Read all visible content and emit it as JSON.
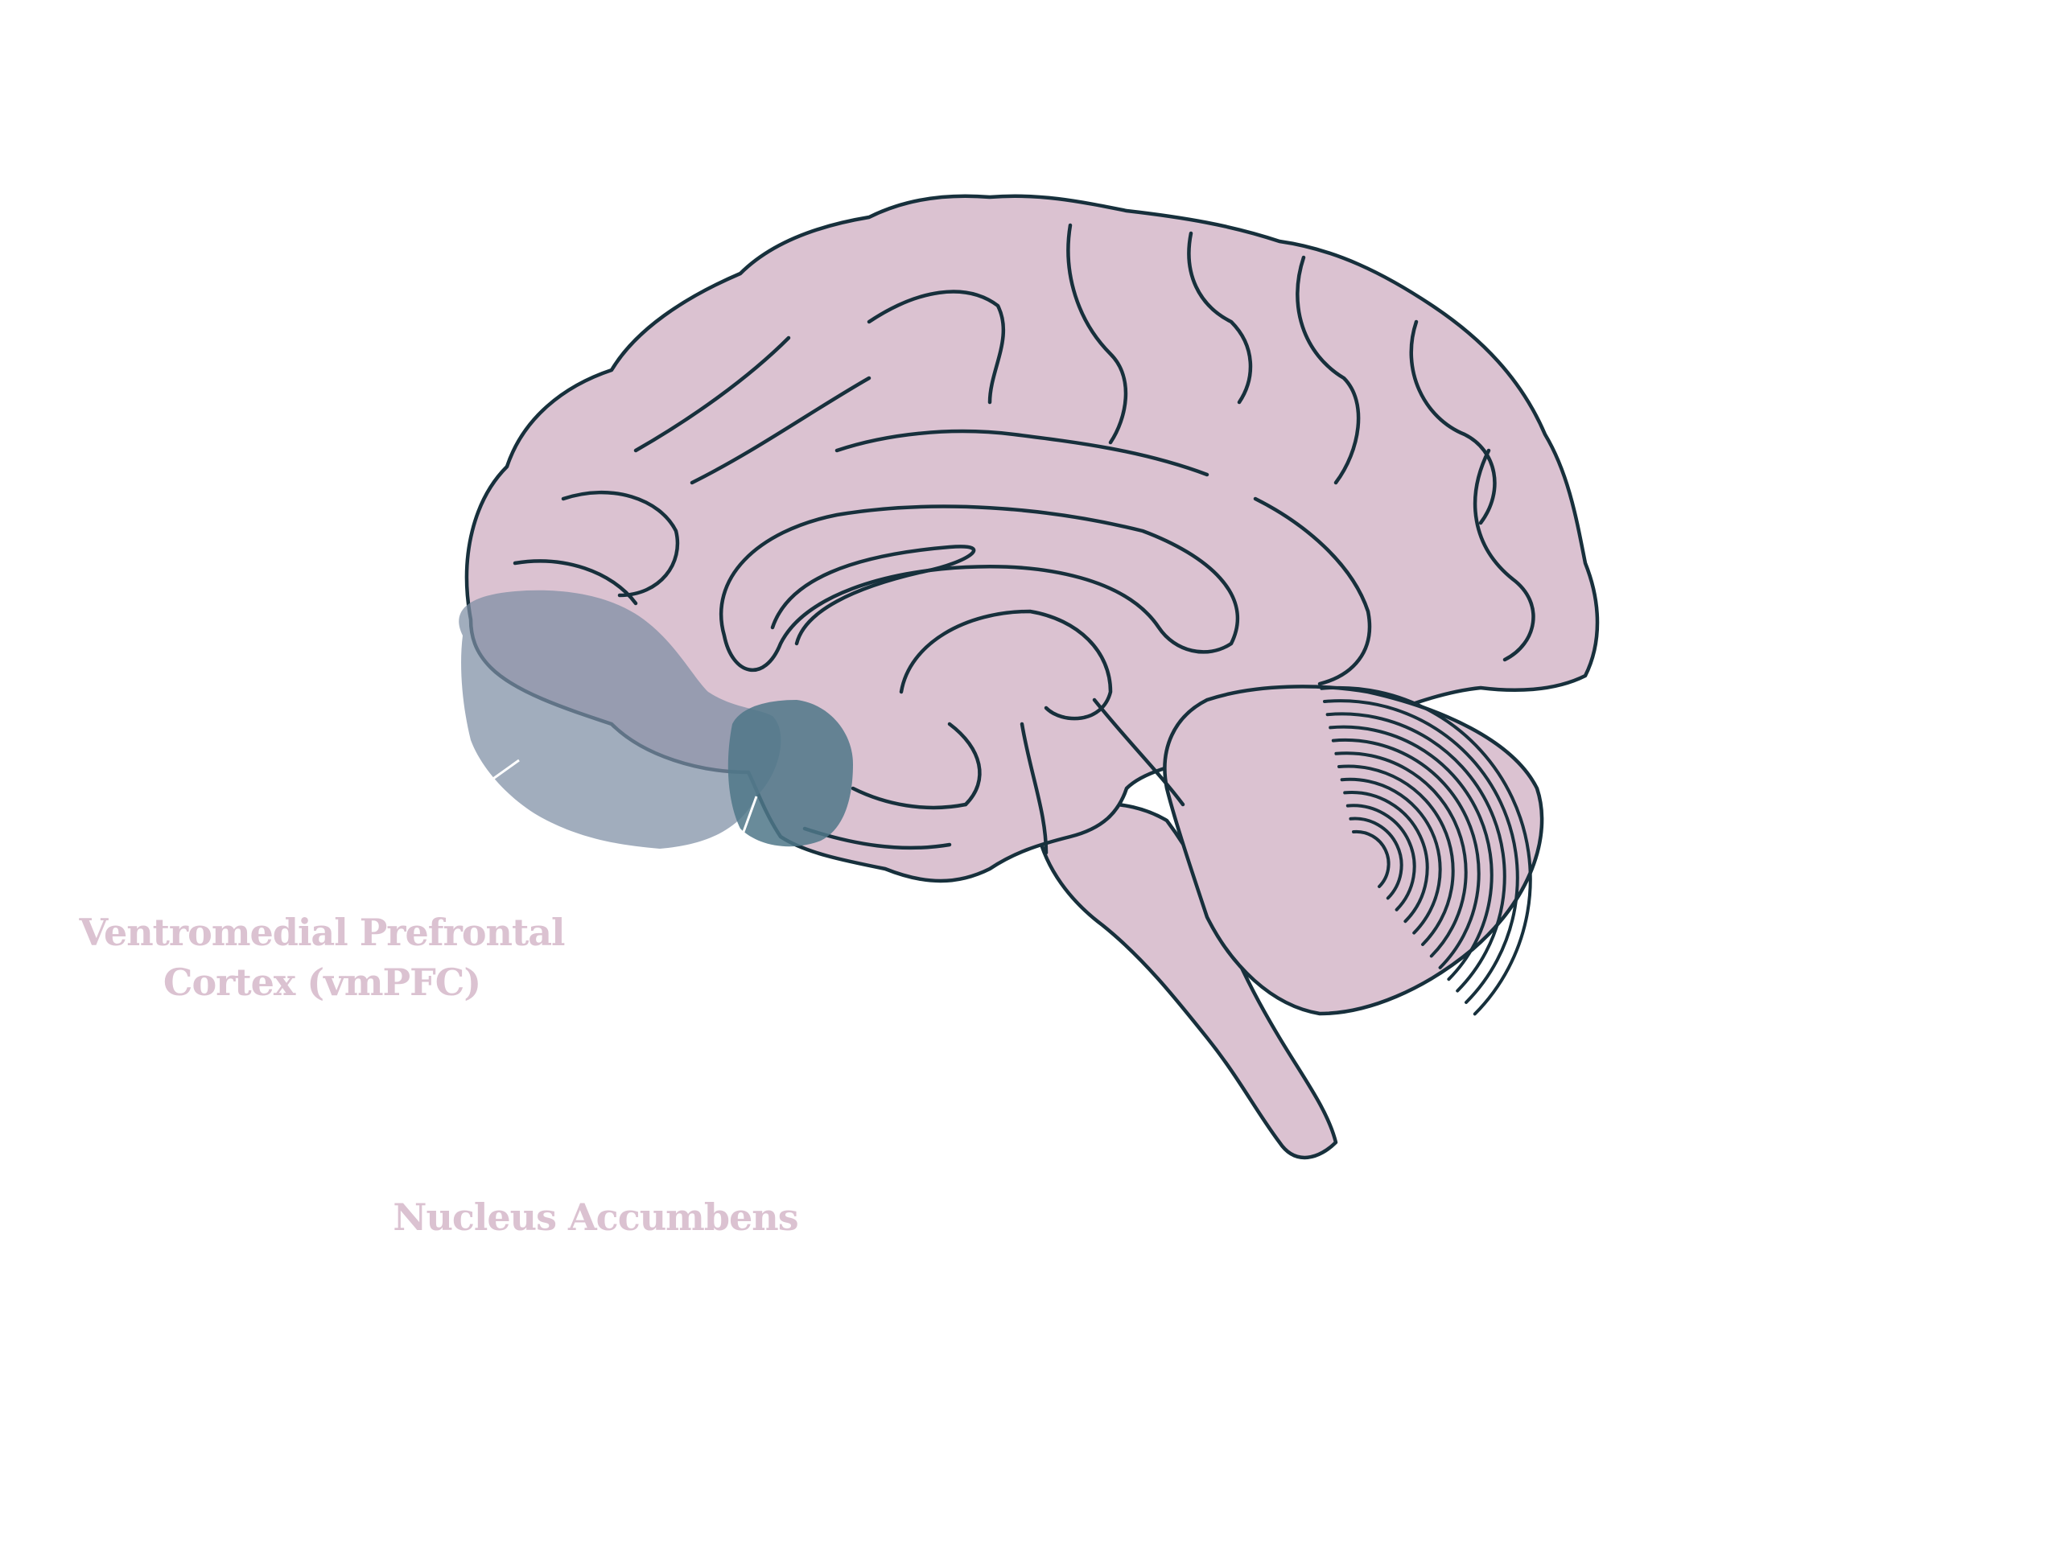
{
  "labels": {
    "vmpfc_line1": "Ventromedial Prefrontal",
    "vmpfc_line2": "Cortex (vmPFC)",
    "nucleus_accumbens": "Nucleus Accumbens"
  },
  "colors": {
    "brain_fill": "#dbc2d1",
    "outline": "#17303c",
    "vmpfc_highlight": "#7d8ea3",
    "nacc_highlight": "#4f7788",
    "label_text": "#dbc2d1",
    "leader_line": "#ffffff"
  }
}
